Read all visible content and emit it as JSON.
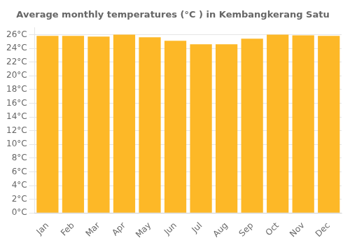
{
  "chart_data": {
    "type": "bar",
    "title": "Average monthly temperatures (°C ) in Kembangkerang Satu",
    "categories": [
      "Jan",
      "Feb",
      "Mar",
      "Apr",
      "May",
      "Jun",
      "Jul",
      "Aug",
      "Sep",
      "Oct",
      "Nov",
      "Dec"
    ],
    "values": [
      25.8,
      25.8,
      25.7,
      26.0,
      25.6,
      25.1,
      24.6,
      24.6,
      25.4,
      26.0,
      25.9,
      25.8
    ],
    "color": "#FDB827",
    "ylim": [
      0,
      27
    ],
    "yticks": [
      {
        "value": 0,
        "label": "0°C"
      },
      {
        "value": 2,
        "label": "2°C"
      },
      {
        "value": 4,
        "label": "4°C"
      },
      {
        "value": 6,
        "label": "6°C"
      },
      {
        "value": 8,
        "label": "8°C"
      },
      {
        "value": 10,
        "label": "10°C"
      },
      {
        "value": 12,
        "label": "12°C"
      },
      {
        "value": 14,
        "label": "14°C"
      },
      {
        "value": 16,
        "label": "16°C"
      },
      {
        "value": 18,
        "label": "18°C"
      },
      {
        "value": 20,
        "label": "20°C"
      },
      {
        "value": 22,
        "label": "22°C"
      },
      {
        "value": 24,
        "label": "24°C"
      },
      {
        "value": 26,
        "label": "26°C"
      }
    ],
    "grid": true
  }
}
